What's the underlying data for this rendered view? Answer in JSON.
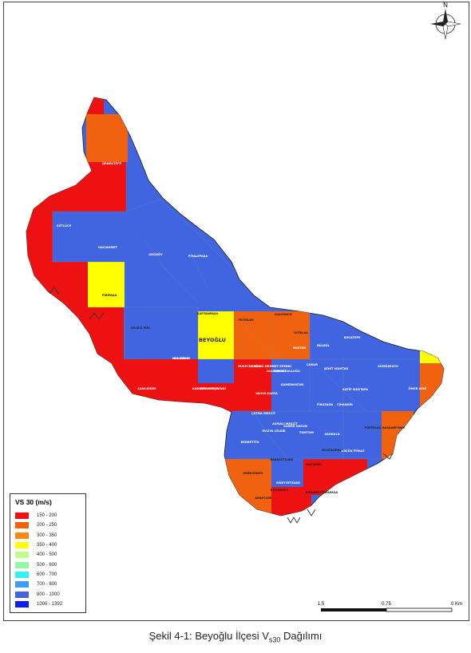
{
  "caption": {
    "prefix": "Şekil 4-1: Beyoğlu İlçesi V",
    "subscript": "s30",
    "suffix": " Dağılımı"
  },
  "compass": {
    "north_label": "N"
  },
  "scale": {
    "labels": [
      "1,5",
      "0,75",
      "0 Km"
    ]
  },
  "legend": {
    "title": "VS 30 (m/s)",
    "items": [
      {
        "label": "150 - 200",
        "color": "#ee1111"
      },
      {
        "label": "200 - 250",
        "color": "#f0620f"
      },
      {
        "label": "300 - 350",
        "color": "#f78a10"
      },
      {
        "label": "350 - 400",
        "color": "#ffff00"
      },
      {
        "label": "400 - 500",
        "color": "#c3fb8a"
      },
      {
        "label": "500 - 600",
        "color": "#8ff7a5"
      },
      {
        "label": "600 - 700",
        "color": "#35f0f0"
      },
      {
        "label": "700 - 800",
        "color": "#3d9df0"
      },
      {
        "label": "800 - 1000",
        "color": "#4165e0"
      },
      {
        "label": "1000 - 1392",
        "color": "#0b1ef0"
      }
    ]
  },
  "map": {
    "district_label": "BEYOĞLU",
    "neighborhoods": [
      "ÖRNEKTEPE",
      "SÜTLÜCE",
      "HACIAHMET",
      "KEÇİKÖY",
      "PİYALEPAŞA",
      "PİRİPAŞA",
      "KEÇECİ PİRİ",
      "KAPTANPAŞA",
      "FETİHLER",
      "KALYONCU",
      "İSTİKLAL",
      "KULOĞLU",
      "ÇAMLIDERE",
      "KASIMPAŞA",
      "HÜSEYİN AĞA",
      "KATİP MUSTAFA",
      "CİHANGİR",
      "FİRUZAĞA",
      "SURURİ",
      "ÇUKUR",
      "ŞEHİT MUHTAR",
      "GÜMÜŞSUYU",
      "ÖMER AVNİ",
      "BÜLBÜL",
      "KOCATEPE",
      "BOSTAN",
      "BEDRETTİN",
      "KILIÇALİPAŞA",
      "PÜRTELAŞ HASANEFENDİ",
      "YAHYA KAHYA",
      "ÇATMA MESCİT",
      "KAMER HATUN",
      "TOMTOM",
      "ASMALI MESCİT",
      "EVLİYA ÇELEBİ",
      "BEREKETZADE",
      "MÜEYYETZADE",
      "ARAPCAMİ",
      "EMEKYEMEZ",
      "KEMANKEŞ",
      "KARAMUSTAFAPAŞA",
      "HACIMİMİ",
      "ŞAHKULU",
      "KÜÇÜK PİYALE",
      "YENİŞEHİR",
      "KADIMEHMETEFENDİ",
      "KÜÇÜK PİYALE",
      "SURURİ MEHMET EFENDİ",
      "KAPTANPAŞA",
      "KALYONCU KULLUĞU",
      "KAMERHATUN",
      "BOSTAN",
      "KUL KASIM"
    ]
  }
}
